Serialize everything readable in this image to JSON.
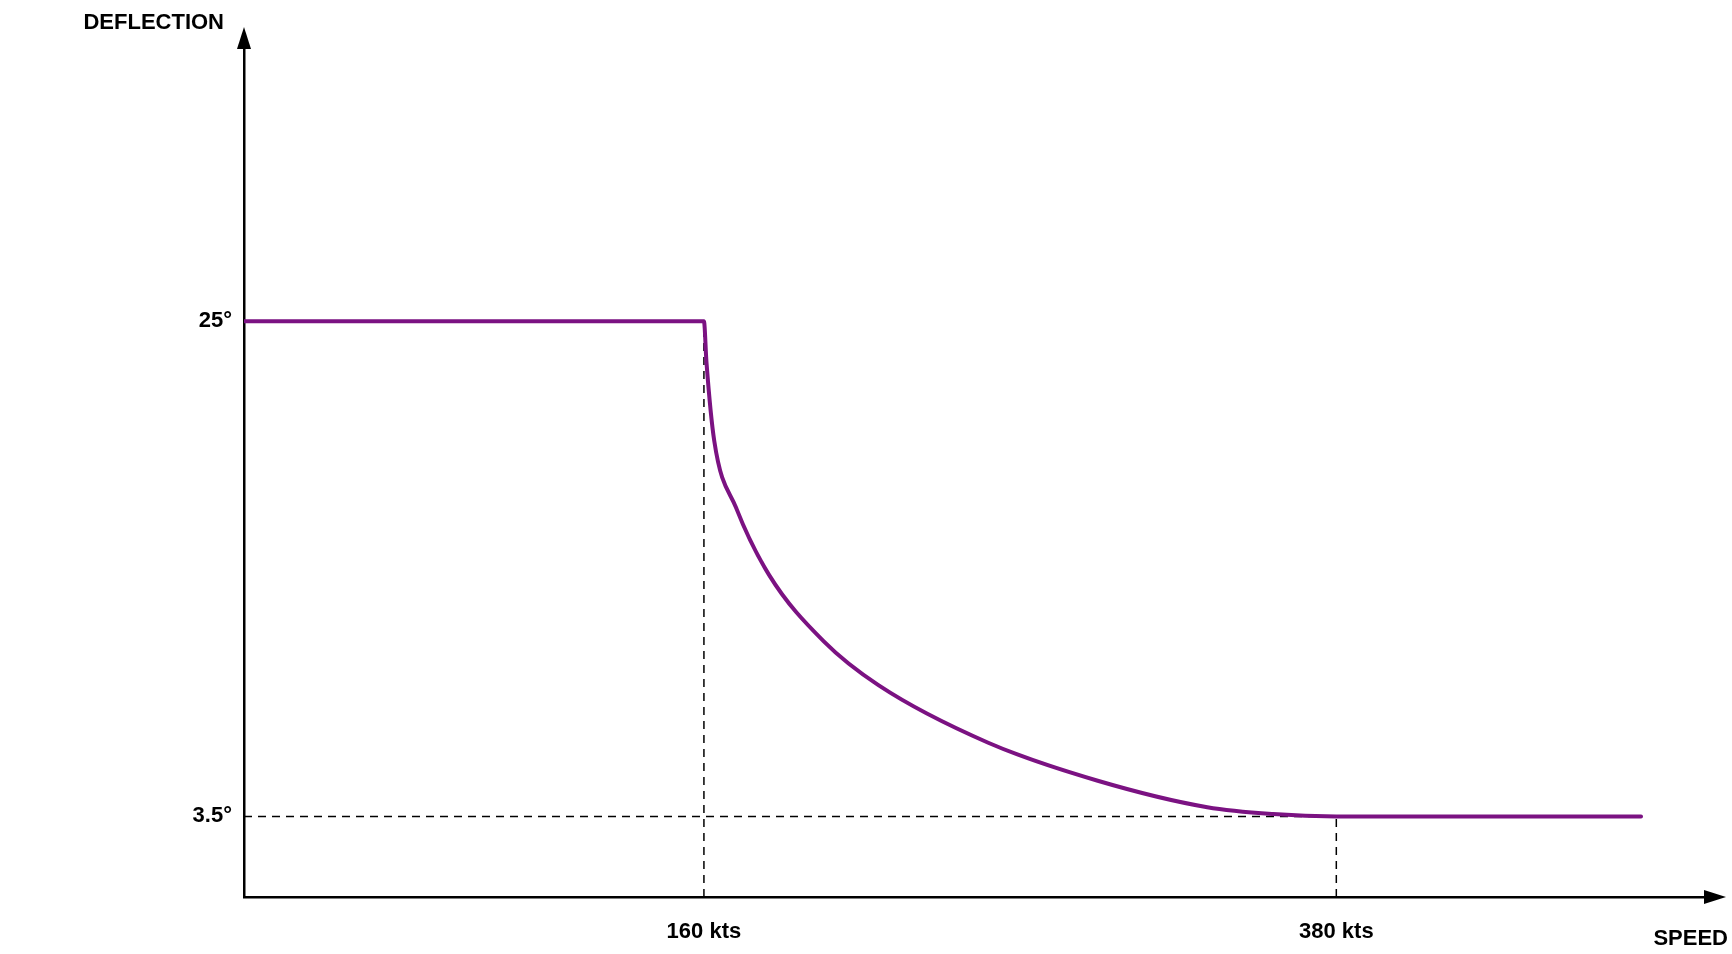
{
  "chart_data": {
    "type": "line",
    "xlabel": "SPEED",
    "ylabel": "DEFLECTION",
    "xlim": [
      0,
      510
    ],
    "ylim": [
      0,
      37
    ],
    "xticks": [
      {
        "value": 160,
        "label": "160 kts"
      },
      {
        "value": 380,
        "label": "380 kts"
      }
    ],
    "yticks": [
      {
        "value": 3.5,
        "label": "3.5°"
      },
      {
        "value": 25,
        "label": "25°"
      }
    ],
    "x": [
      0,
      160,
      160.9,
      163.6,
      171.2,
      182.6,
      201.7,
      220.7,
      258.9,
      297,
      335.1,
      358,
      380,
      486
    ],
    "series": [
      {
        "color": "#7b1282",
        "values": [
          25,
          25,
          23.2,
          19.8,
          16.9,
          14.0,
          11.1,
          9.2,
          6.7,
          5.05,
          3.9,
          3.6,
          3.5,
          3.5
        ]
      }
    ],
    "ref_lines": [
      {
        "axis": "x",
        "value": 160,
        "color": "#000000",
        "line_style": "dashed"
      },
      {
        "axis": "x",
        "value": 380,
        "color": "#000000",
        "line_style": "dashed"
      },
      {
        "axis": "y",
        "value": 3.5,
        "color": "#000000",
        "line_style": "dashed"
      }
    ],
    "grid": false,
    "legend": false,
    "marker": "none",
    "line_style": "solid"
  }
}
